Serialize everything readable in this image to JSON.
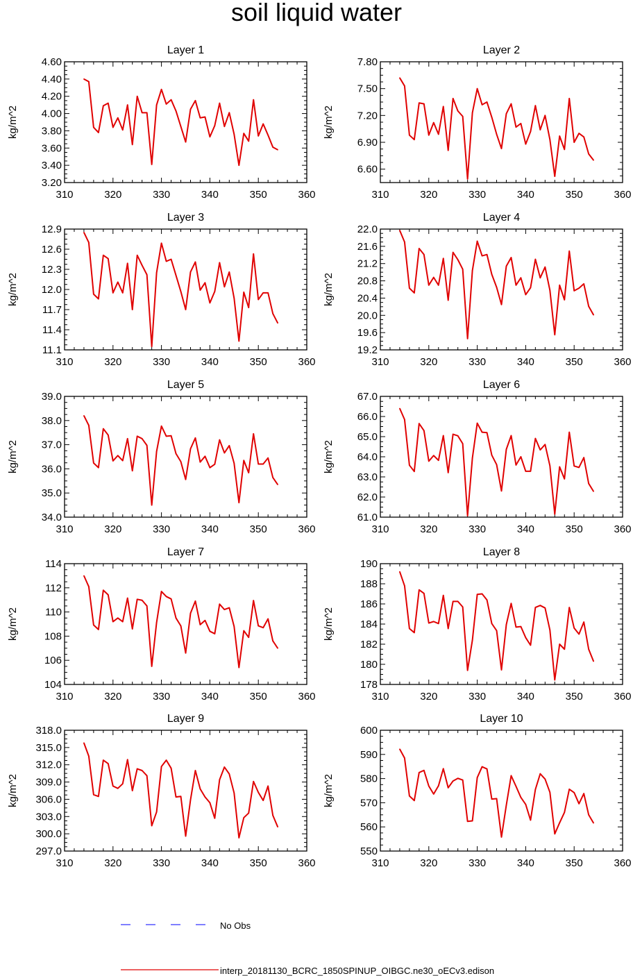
{
  "title": "soil liquid water",
  "legend": {
    "obs_label": "No Obs",
    "model_label": "interp_20181130_BCRC_1850SPINUP_OIBGC.ne30_oECv3.edison",
    "obs_color": "#3333ff",
    "model_color": "#e00000"
  },
  "chart_data": [
    {
      "type": "line",
      "title": "Layer 1",
      "ylabel": "kg/m^2",
      "xlim": [
        310,
        360
      ],
      "ylim": [
        3.2,
        4.6
      ],
      "xticks": [
        "310",
        "320",
        "330",
        "340",
        "350",
        "360"
      ],
      "yticks": [
        "3.20",
        "3.40",
        "3.60",
        "3.80",
        "4.00",
        "4.20",
        "4.40",
        "4.60"
      ],
      "x": [
        314,
        315,
        316,
        317,
        318,
        319,
        320,
        321,
        322,
        323,
        324,
        325,
        326,
        327,
        328,
        329,
        330,
        331,
        332,
        333,
        334,
        335,
        336,
        337,
        338,
        339,
        340,
        341,
        342,
        343,
        344,
        345,
        346,
        347,
        348,
        349,
        350,
        351,
        352,
        353,
        354
      ],
      "series": [
        {
          "name": "interp_20181130_BCRC_1850SPINUP_OIBGC.ne30_oECv3.edison",
          "values": [
            4.4,
            4.37,
            3.84,
            3.78,
            4.09,
            4.12,
            3.84,
            3.95,
            3.81,
            4.1,
            3.64,
            4.2,
            4.01,
            4.01,
            3.41,
            4.1,
            4.28,
            4.11,
            4.16,
            4.03,
            3.85,
            3.67,
            4.05,
            4.15,
            3.95,
            3.96,
            3.73,
            3.86,
            4.12,
            3.85,
            4.01,
            3.76,
            3.4,
            3.77,
            3.68,
            4.16,
            3.74,
            3.88,
            3.75,
            3.61,
            3.58
          ]
        }
      ]
    },
    {
      "type": "line",
      "title": "Layer 2",
      "ylabel": "kg/m^2",
      "xlim": [
        310,
        360
      ],
      "ylim": [
        6.45,
        7.8
      ],
      "xticks": [
        "310",
        "320",
        "330",
        "340",
        "350",
        "360"
      ],
      "yticks": [
        "6.60",
        "6.90",
        "7.20",
        "7.50",
        "7.80"
      ],
      "ytick_values": [
        6.6,
        6.9,
        7.2,
        7.5,
        7.8
      ],
      "x": [
        314,
        315,
        316,
        317,
        318,
        319,
        320,
        321,
        322,
        323,
        324,
        325,
        326,
        327,
        328,
        329,
        330,
        331,
        332,
        333,
        334,
        335,
        336,
        337,
        338,
        339,
        340,
        341,
        342,
        343,
        344,
        345,
        346,
        347,
        348,
        349,
        350,
        351,
        352,
        353,
        354
      ],
      "series": [
        {
          "name": "interp_20181130_BCRC_1850SPINUP_OIBGC.ne30_oECv3.edison",
          "values": [
            7.62,
            7.53,
            6.98,
            6.93,
            7.34,
            7.33,
            6.98,
            7.12,
            6.99,
            7.3,
            6.81,
            7.39,
            7.25,
            7.19,
            6.49,
            7.23,
            7.5,
            7.32,
            7.35,
            7.18,
            6.99,
            6.83,
            7.22,
            7.33,
            7.07,
            7.11,
            6.88,
            7.02,
            7.31,
            7.04,
            7.2,
            6.93,
            6.52,
            6.97,
            6.82,
            7.39,
            6.9,
            7.0,
            6.96,
            6.77,
            6.7
          ]
        }
      ]
    },
    {
      "type": "line",
      "title": "Layer 3",
      "ylabel": "kg/m^2",
      "xlim": [
        310,
        360
      ],
      "ylim": [
        11.1,
        12.9
      ],
      "xticks": [
        "310",
        "320",
        "330",
        "340",
        "350",
        "360"
      ],
      "yticks": [
        "11.1",
        "11.4",
        "11.7",
        "12.0",
        "12.3",
        "12.6",
        "12.9"
      ],
      "x": [
        314,
        315,
        316,
        317,
        318,
        319,
        320,
        321,
        322,
        323,
        324,
        325,
        326,
        327,
        328,
        329,
        330,
        331,
        332,
        333,
        334,
        335,
        336,
        337,
        338,
        339,
        340,
        341,
        342,
        343,
        344,
        345,
        346,
        347,
        348,
        349,
        350,
        351,
        352,
        353,
        354
      ],
      "series": [
        {
          "name": "interp_20181130_BCRC_1850SPINUP_OIBGC.ne30_oECv3.edison",
          "values": [
            12.85,
            12.7,
            11.93,
            11.86,
            12.51,
            12.46,
            11.95,
            12.11,
            11.95,
            12.39,
            11.7,
            12.51,
            12.36,
            12.22,
            11.15,
            12.25,
            12.69,
            12.42,
            12.45,
            12.21,
            11.97,
            11.7,
            12.26,
            12.41,
            11.99,
            12.1,
            11.8,
            11.97,
            12.4,
            12.04,
            12.26,
            11.87,
            11.23,
            11.96,
            11.73,
            12.53,
            11.85,
            11.95,
            11.95,
            11.64,
            11.5
          ]
        }
      ]
    },
    {
      "type": "line",
      "title": "Layer 4",
      "ylabel": "kg/m^2",
      "xlim": [
        310,
        360
      ],
      "ylim": [
        19.2,
        22.0
      ],
      "xticks": [
        "310",
        "320",
        "330",
        "340",
        "350",
        "360"
      ],
      "yticks": [
        "19.2",
        "19.6",
        "20.0",
        "20.4",
        "20.8",
        "21.2",
        "21.6",
        "22.0"
      ],
      "x": [
        314,
        315,
        316,
        317,
        318,
        319,
        320,
        321,
        322,
        323,
        324,
        325,
        326,
        327,
        328,
        329,
        330,
        331,
        332,
        333,
        334,
        335,
        336,
        337,
        338,
        339,
        340,
        341,
        342,
        343,
        344,
        345,
        346,
        347,
        348,
        349,
        350,
        351,
        352,
        353,
        354
      ],
      "series": [
        {
          "name": "interp_20181130_BCRC_1850SPINUP_OIBGC.ne30_oECv3.edison",
          "values": [
            21.97,
            21.7,
            20.63,
            20.52,
            21.55,
            21.41,
            20.7,
            20.88,
            20.7,
            21.32,
            20.35,
            21.46,
            21.29,
            21.07,
            19.46,
            21.04,
            21.72,
            21.38,
            21.41,
            20.95,
            20.65,
            20.25,
            21.14,
            21.34,
            20.7,
            20.87,
            20.48,
            20.64,
            21.3,
            20.87,
            21.12,
            20.58,
            19.55,
            20.7,
            20.36,
            21.49,
            20.57,
            20.63,
            20.73,
            20.21,
            20.01
          ]
        }
      ]
    },
    {
      "type": "line",
      "title": "Layer 5",
      "ylabel": "kg/m^2",
      "xlim": [
        310,
        360
      ],
      "ylim": [
        34.0,
        39.0
      ],
      "xticks": [
        "310",
        "320",
        "330",
        "340",
        "350",
        "360"
      ],
      "yticks": [
        "34.0",
        "35.0",
        "36.0",
        "37.0",
        "38.0",
        "39.0"
      ],
      "x": [
        314,
        315,
        316,
        317,
        318,
        319,
        320,
        321,
        322,
        323,
        324,
        325,
        326,
        327,
        328,
        329,
        330,
        331,
        332,
        333,
        334,
        335,
        336,
        337,
        338,
        339,
        340,
        341,
        342,
        343,
        344,
        345,
        346,
        347,
        348,
        349,
        350,
        351,
        352,
        353,
        354
      ],
      "series": [
        {
          "name": "interp_20181130_BCRC_1850SPINUP_OIBGC.ne30_oECv3.edison",
          "values": [
            38.2,
            37.8,
            36.24,
            36.05,
            37.66,
            37.4,
            36.33,
            36.55,
            36.34,
            37.25,
            35.92,
            37.35,
            37.25,
            36.97,
            34.5,
            36.72,
            37.77,
            37.35,
            37.37,
            36.63,
            36.3,
            35.56,
            36.83,
            37.28,
            36.28,
            36.52,
            36.05,
            36.19,
            37.2,
            36.66,
            36.96,
            36.23,
            34.6,
            36.35,
            35.84,
            37.45,
            36.2,
            36.2,
            36.45,
            35.64,
            35.35
          ]
        }
      ]
    },
    {
      "type": "line",
      "title": "Layer 6",
      "ylabel": "kg/m^2",
      "xlim": [
        310,
        360
      ],
      "ylim": [
        61.0,
        67.0
      ],
      "xticks": [
        "310",
        "320",
        "330",
        "340",
        "350",
        "360"
      ],
      "yticks": [
        "61.0",
        "62.0",
        "63.0",
        "64.0",
        "65.0",
        "66.0",
        "67.0"
      ],
      "x": [
        314,
        315,
        316,
        317,
        318,
        319,
        320,
        321,
        322,
        323,
        324,
        325,
        326,
        327,
        328,
        329,
        330,
        331,
        332,
        333,
        334,
        335,
        336,
        337,
        338,
        339,
        340,
        341,
        342,
        343,
        344,
        345,
        346,
        347,
        348,
        349,
        350,
        351,
        352,
        353,
        354
      ],
      "series": [
        {
          "name": "interp_20181130_BCRC_1850SPINUP_OIBGC.ne30_oECv3.edison",
          "values": [
            66.4,
            65.85,
            63.58,
            63.27,
            65.65,
            65.3,
            63.78,
            64.06,
            63.82,
            65.05,
            63.21,
            65.12,
            65.04,
            64.65,
            61.07,
            63.94,
            65.67,
            65.22,
            65.2,
            64.08,
            63.61,
            62.3,
            64.37,
            65.05,
            63.59,
            64.0,
            63.28,
            63.28,
            64.91,
            64.34,
            64.61,
            63.55,
            61.15,
            63.5,
            62.9,
            65.22,
            63.54,
            63.47,
            63.96,
            62.67,
            62.28
          ]
        }
      ]
    },
    {
      "type": "line",
      "title": "Layer 7",
      "ylabel": "kg/m^2",
      "xlim": [
        310,
        360
      ],
      "ylim": [
        104,
        114
      ],
      "xticks": [
        "310",
        "320",
        "330",
        "340",
        "350",
        "360"
      ],
      "yticks": [
        "104",
        "106",
        "108",
        "110",
        "112",
        "114"
      ],
      "x": [
        314,
        315,
        316,
        317,
        318,
        319,
        320,
        321,
        322,
        323,
        324,
        325,
        326,
        327,
        328,
        329,
        330,
        331,
        332,
        333,
        334,
        335,
        336,
        337,
        338,
        339,
        340,
        341,
        342,
        343,
        344,
        345,
        346,
        347,
        348,
        349,
        350,
        351,
        352,
        353,
        354
      ],
      "series": [
        {
          "name": "interp_20181130_BCRC_1850SPINUP_OIBGC.ne30_oECv3.edison",
          "values": [
            113.0,
            112.1,
            108.92,
            108.55,
            111.8,
            111.42,
            109.2,
            109.5,
            109.2,
            111.15,
            108.6,
            111.05,
            110.97,
            110.5,
            105.5,
            109.13,
            111.7,
            111.28,
            111.08,
            109.5,
            108.85,
            106.6,
            109.9,
            110.9,
            108.95,
            109.3,
            108.4,
            108.2,
            110.65,
            110.2,
            110.35,
            108.8,
            105.4,
            108.45,
            107.9,
            110.95,
            108.85,
            108.7,
            109.43,
            107.6,
            107.0
          ]
        }
      ]
    },
    {
      "type": "line",
      "title": "Layer 8",
      "ylabel": "kg/m^2",
      "xlim": [
        310,
        360
      ],
      "ylim": [
        178,
        190
      ],
      "xticks": [
        "310",
        "320",
        "330",
        "340",
        "350",
        "360"
      ],
      "yticks": [
        "178",
        "180",
        "182",
        "184",
        "186",
        "188",
        "190"
      ],
      "x": [
        314,
        315,
        316,
        317,
        318,
        319,
        320,
        321,
        322,
        323,
        324,
        325,
        326,
        327,
        328,
        329,
        330,
        331,
        332,
        333,
        334,
        335,
        336,
        337,
        338,
        339,
        340,
        341,
        342,
        343,
        344,
        345,
        346,
        347,
        348,
        349,
        350,
        351,
        352,
        353,
        354
      ],
      "series": [
        {
          "name": "interp_20181130_BCRC_1850SPINUP_OIBGC.ne30_oECv3.edison",
          "values": [
            189.2,
            187.8,
            183.55,
            183.15,
            187.4,
            187.05,
            184.1,
            184.25,
            184.05,
            186.85,
            183.55,
            186.25,
            186.25,
            185.7,
            179.4,
            182.4,
            186.95,
            187.0,
            186.4,
            184.05,
            183.35,
            179.45,
            183.95,
            186.05,
            183.7,
            183.75,
            182.65,
            181.9,
            185.65,
            185.85,
            185.6,
            183.4,
            178.45,
            182.0,
            181.5,
            185.65,
            183.6,
            183.0,
            184.2,
            181.5,
            180.3
          ]
        }
      ]
    },
    {
      "type": "line",
      "title": "Layer 9",
      "ylabel": "kg/m^2",
      "xlim": [
        310,
        360
      ],
      "ylim": [
        297.0,
        318.0
      ],
      "xticks": [
        "310",
        "320",
        "330",
        "340",
        "350",
        "360"
      ],
      "yticks": [
        "297.0",
        "300.0",
        "303.0",
        "306.0",
        "309.0",
        "312.0",
        "315.0",
        "318.0"
      ],
      "x": [
        314,
        315,
        316,
        317,
        318,
        319,
        320,
        321,
        322,
        323,
        324,
        325,
        326,
        327,
        328,
        329,
        330,
        331,
        332,
        333,
        334,
        335,
        336,
        337,
        338,
        339,
        340,
        341,
        342,
        343,
        344,
        345,
        346,
        347,
        348,
        349,
        350,
        351,
        352,
        353,
        354
      ],
      "series": [
        {
          "name": "interp_20181130_BCRC_1850SPINUP_OIBGC.ne30_oECv3.edison",
          "values": [
            315.8,
            313.5,
            306.8,
            306.5,
            312.8,
            312.2,
            308.3,
            307.9,
            308.7,
            312.9,
            307.5,
            311.3,
            311.0,
            310.1,
            301.4,
            303.8,
            311.7,
            312.8,
            311.4,
            306.4,
            306.5,
            299.6,
            305.9,
            311.0,
            307.8,
            306.4,
            305.4,
            302.7,
            309.4,
            311.6,
            310.4,
            307.1,
            299.3,
            302.8,
            303.6,
            309.1,
            307.2,
            305.8,
            308.3,
            303.2,
            301.2
          ]
        }
      ]
    },
    {
      "type": "line",
      "title": "Layer 10",
      "ylabel": "kg/m^2",
      "xlim": [
        310,
        360
      ],
      "ylim": [
        550,
        600
      ],
      "xticks": [
        "310",
        "320",
        "330",
        "340",
        "350",
        "360"
      ],
      "yticks": [
        "550",
        "560",
        "570",
        "580",
        "590",
        "600"
      ],
      "x": [
        314,
        315,
        316,
        317,
        318,
        319,
        320,
        321,
        322,
        323,
        324,
        325,
        326,
        327,
        328,
        329,
        330,
        331,
        332,
        333,
        334,
        335,
        336,
        337,
        338,
        339,
        340,
        341,
        342,
        343,
        344,
        345,
        346,
        347,
        348,
        349,
        350,
        351,
        352,
        353,
        354
      ],
      "series": [
        {
          "name": "interp_20181130_BCRC_1850SPINUP_OIBGC.ne30_oECv3.edison",
          "values": [
            592.2,
            588.5,
            572.8,
            570.9,
            582.5,
            583.4,
            576.9,
            573.6,
            577.0,
            584.1,
            576.2,
            579.0,
            580.1,
            579.4,
            562.3,
            562.5,
            580.4,
            584.9,
            584.0,
            571.5,
            571.7,
            555.8,
            569.0,
            581.2,
            576.8,
            572.2,
            569.3,
            562.8,
            575.5,
            582.0,
            579.8,
            574.3,
            557.1,
            561.7,
            566.0,
            575.6,
            574.2,
            569.6,
            573.8,
            565.0,
            561.6
          ]
        }
      ]
    }
  ]
}
